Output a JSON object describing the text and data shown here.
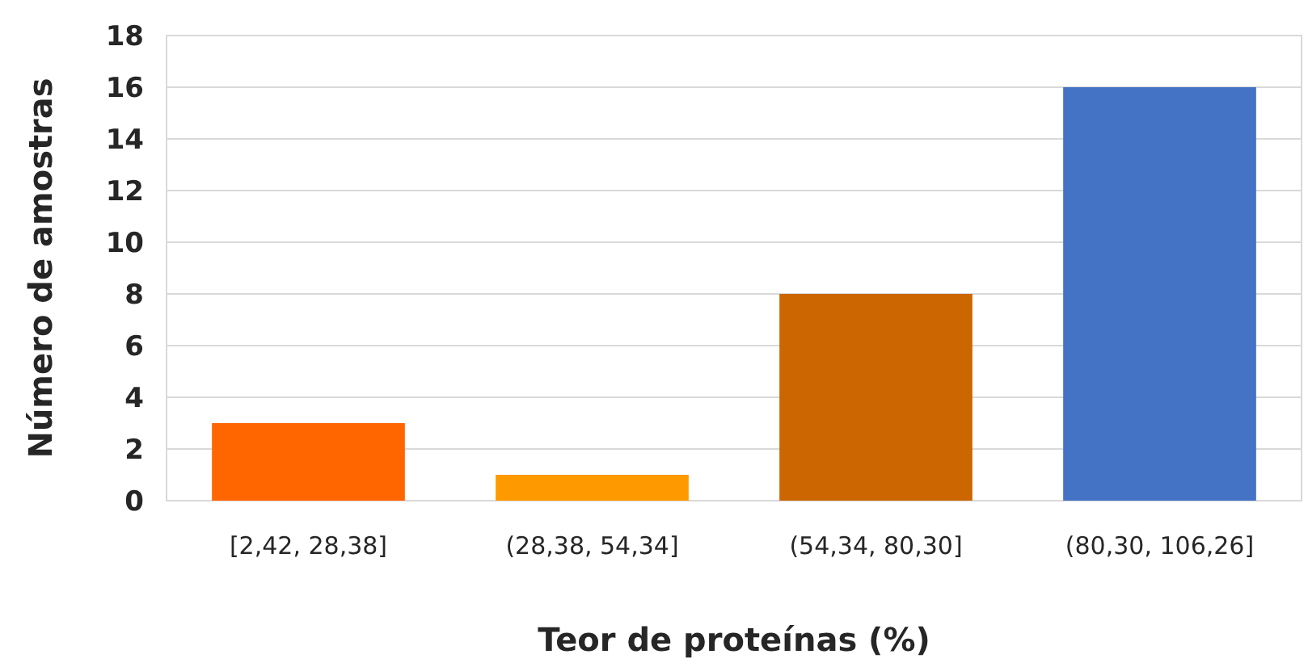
{
  "chart_data": {
    "type": "bar",
    "xlabel": "Teor de proteínas (%)",
    "ylabel": "Número de amostras",
    "categories": [
      "[2,42, 28,38]",
      "(28,38, 54,34]",
      "(54,34, 80,30]",
      "(80,30, 106,26]"
    ],
    "values": [
      3,
      1,
      8,
      16
    ],
    "colors": [
      "#ff6600",
      "#ff9900",
      "#cc6600",
      "#4472c4"
    ],
    "ylim": [
      0,
      18
    ],
    "yticks": [
      0,
      2,
      4,
      6,
      8,
      10,
      12,
      14,
      16,
      18
    ],
    "grid": "y"
  }
}
